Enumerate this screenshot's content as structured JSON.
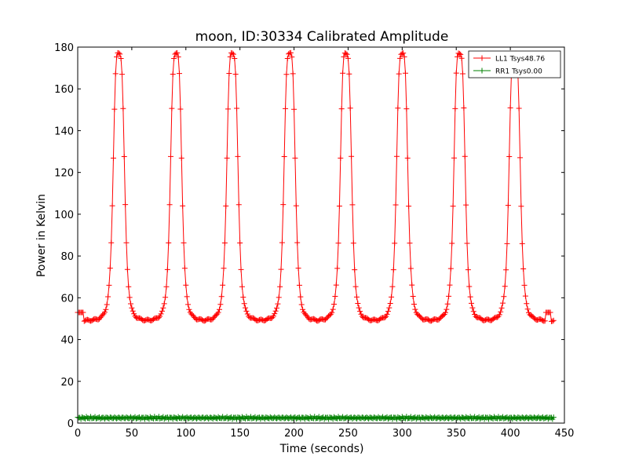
{
  "chart_data": {
    "type": "line",
    "title": "moon, ID:30334 Calibrated Amplitude",
    "xlabel": "Time (seconds)",
    "ylabel": "Power in Kelvin",
    "xlim": [
      0,
      450
    ],
    "ylim": [
      0,
      180
    ],
    "xticks": [
      "0",
      "50",
      "100",
      "150",
      "200",
      "250",
      "300",
      "350",
      "400",
      "450"
    ],
    "yticks": [
      "0",
      "20",
      "40",
      "60",
      "80",
      "100",
      "120",
      "140",
      "160",
      "180"
    ],
    "grid": false,
    "legend_position": "top-right",
    "marker": "+",
    "series": [
      {
        "name": "LL1 Tsys48.76",
        "color": "#ff0000",
        "baseline": 49,
        "start_value": 53,
        "sample_interval": 1,
        "x_range": [
          0,
          440
        ],
        "peaks": [
          {
            "x": 38,
            "value": 177
          },
          {
            "x": 91,
            "value": 177
          },
          {
            "x": 143,
            "value": 177
          },
          {
            "x": 196,
            "value": 177
          },
          {
            "x": 248,
            "value": 177
          },
          {
            "x": 300,
            "value": 177
          },
          {
            "x": 353,
            "value": 177
          },
          {
            "x": 404,
            "value": 177
          }
        ],
        "end_values": [
          {
            "x": 435,
            "value": 53
          },
          {
            "x": 440,
            "value": 49
          }
        ]
      },
      {
        "name": "RR1 Tsys0.00",
        "color": "#008000",
        "baseline": 2.5,
        "sample_interval": 1,
        "x_range": [
          0,
          440
        ]
      }
    ]
  }
}
